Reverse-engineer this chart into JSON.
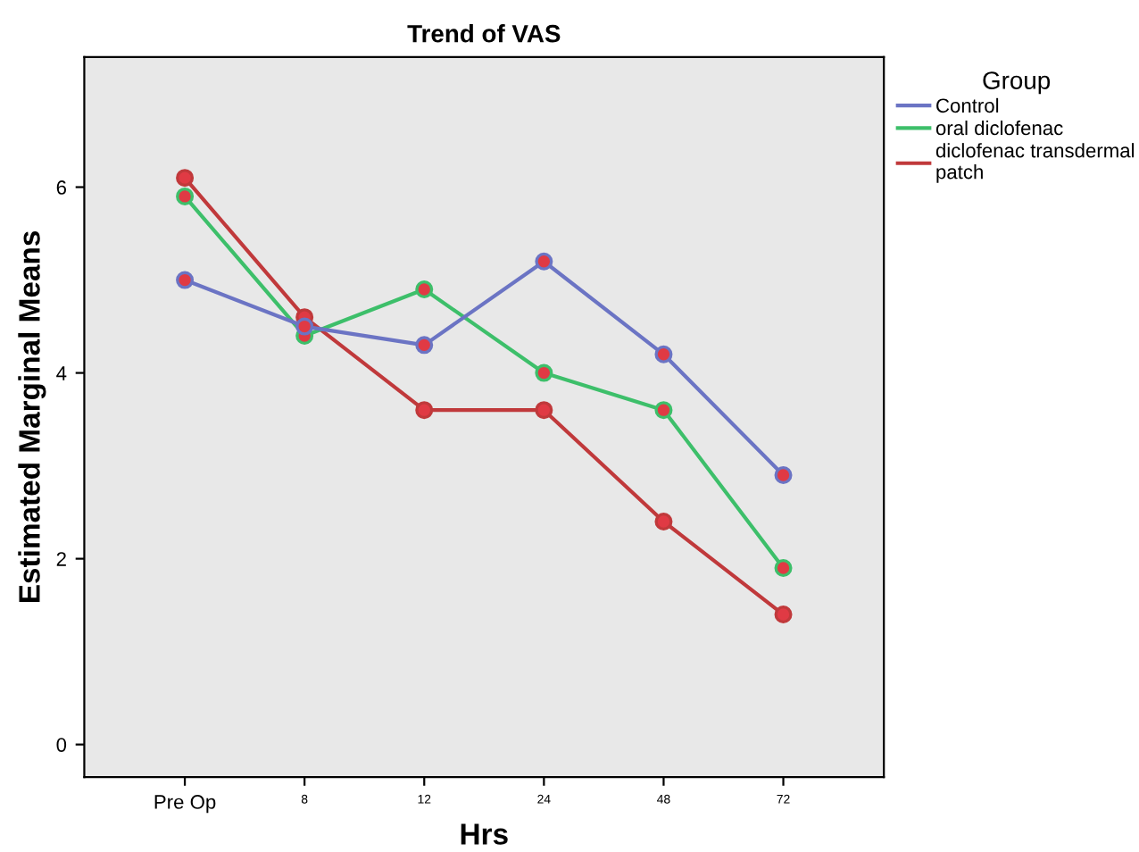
{
  "chart_data": {
    "type": "line",
    "title": "Trend of VAS",
    "xlabel": "Hrs",
    "ylabel": "Estimated Marginal Means",
    "legend_title": "Group",
    "categories": [
      "Pre Op",
      "8",
      "12",
      "24",
      "48",
      "72"
    ],
    "series": [
      {
        "name": "Control",
        "color": "#6b74c4",
        "values": [
          5.0,
          4.5,
          4.3,
          5.2,
          4.2,
          2.9
        ]
      },
      {
        "name": "oral diclofenac",
        "color": "#3dbf6a",
        "values": [
          5.9,
          4.4,
          4.9,
          4.0,
          3.6,
          1.9
        ]
      },
      {
        "name": "diclofenac transdermal\npatch",
        "color": "#c0393b",
        "values": [
          6.1,
          4.6,
          3.6,
          3.6,
          2.4,
          1.4
        ]
      }
    ],
    "ylim": [
      -0.35,
      7.4
    ],
    "yticks": [
      0,
      2,
      4,
      6
    ],
    "grid": false,
    "legend": "top right",
    "marker": "circle",
    "line_style": "solid"
  }
}
